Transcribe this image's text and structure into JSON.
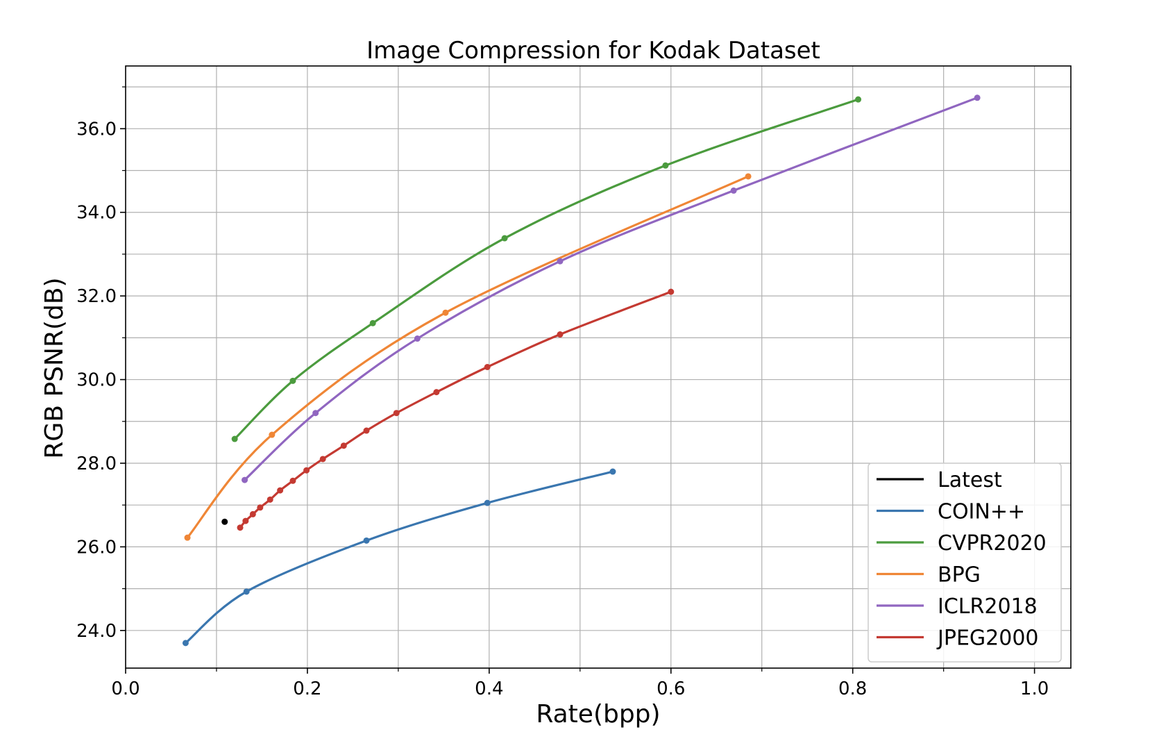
{
  "chart_data": {
    "type": "line",
    "title": "Image Compression for Kodak Dataset",
    "xlabel": "Rate(bpp)",
    "ylabel": "RGB PSNR(dB)",
    "xlim": [
      0.0,
      1.04
    ],
    "ylim": [
      23.1,
      37.5
    ],
    "xticks": [
      0.0,
      0.2,
      0.4,
      0.6,
      0.8,
      1.0
    ],
    "xtick_labels": [
      "0.0",
      "0.2",
      "0.4",
      "0.6",
      "0.8",
      "1.0"
    ],
    "yticks": [
      24.0,
      26.0,
      28.0,
      30.0,
      32.0,
      34.0,
      36.0
    ],
    "ytick_labels": [
      "24.0",
      "26.0",
      "28.0",
      "30.0",
      "32.0",
      "34.0",
      "36.0"
    ],
    "grid": true,
    "legend_position": "bottom-right",
    "series": [
      {
        "name": "Latest",
        "color": "#000000",
        "points": [
          [
            0.109,
            26.6
          ]
        ]
      },
      {
        "name": "COIN++",
        "color": "#3a76af",
        "points": [
          [
            0.066,
            23.7
          ],
          [
            0.133,
            24.93
          ],
          [
            0.265,
            26.15
          ],
          [
            0.398,
            27.05
          ],
          [
            0.536,
            27.8
          ]
        ]
      },
      {
        "name": "CVPR2020",
        "color": "#4b9b3e",
        "points": [
          [
            0.12,
            28.58
          ],
          [
            0.184,
            29.97
          ],
          [
            0.272,
            31.35
          ],
          [
            0.417,
            33.38
          ],
          [
            0.594,
            35.12
          ],
          [
            0.806,
            36.7
          ]
        ]
      },
      {
        "name": "BPG",
        "color": "#ef8636",
        "points": [
          [
            0.068,
            26.22
          ],
          [
            0.161,
            28.68
          ],
          [
            0.352,
            31.6
          ],
          [
            0.685,
            34.86
          ]
        ]
      },
      {
        "name": "ICLR2018",
        "color": "#9066c0",
        "points": [
          [
            0.131,
            27.6
          ],
          [
            0.209,
            29.2
          ],
          [
            0.321,
            30.98
          ],
          [
            0.478,
            32.83
          ],
          [
            0.669,
            34.52
          ],
          [
            0.937,
            36.74
          ]
        ]
      },
      {
        "name": "JPEG2000",
        "color": "#c43a32",
        "points": [
          [
            0.126,
            26.46
          ],
          [
            0.132,
            26.62
          ],
          [
            0.14,
            26.78
          ],
          [
            0.148,
            26.94
          ],
          [
            0.159,
            27.13
          ],
          [
            0.17,
            27.35
          ],
          [
            0.184,
            27.58
          ],
          [
            0.199,
            27.83
          ],
          [
            0.217,
            28.1
          ],
          [
            0.24,
            28.42
          ],
          [
            0.265,
            28.78
          ],
          [
            0.298,
            29.2
          ],
          [
            0.342,
            29.7
          ],
          [
            0.398,
            30.3
          ],
          [
            0.478,
            31.08
          ],
          [
            0.6,
            32.1
          ]
        ]
      }
    ]
  }
}
